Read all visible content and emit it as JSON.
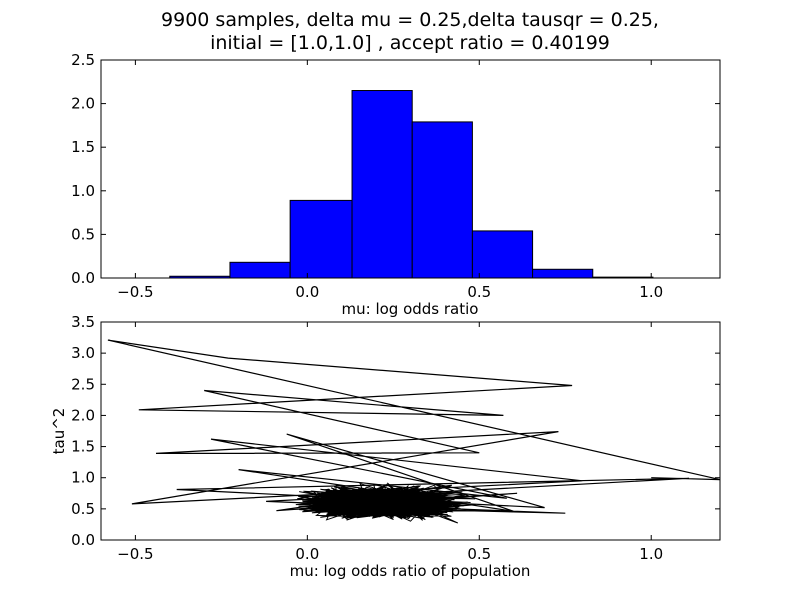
{
  "title_line1": "9900 samples, delta mu = 0.25,delta tausqr = 0.25,",
  "title_line2": "initial = [1.0,1.0] , accept ratio = 0.40199",
  "colors": {
    "bar_fill": "#0000ff",
    "edge": "#000000",
    "line": "#000000",
    "background": "#ffffff"
  },
  "chart_data": [
    {
      "type": "bar",
      "subtype": "histogram",
      "xlabel": "mu: log odds ratio",
      "ylabel": "",
      "xlim": [
        -0.6,
        1.2
      ],
      "ylim": [
        0,
        2.5
      ],
      "xticks": [
        -0.5,
        0.0,
        0.5,
        1.0
      ],
      "xtick_labels": [
        "−0.5",
        "0.0",
        "0.5",
        "1.0"
      ],
      "yticks": [
        0.0,
        0.5,
        1.0,
        1.5,
        2.0,
        2.5
      ],
      "ytick_labels": [
        "0.0",
        "0.5",
        "1.0",
        "1.5",
        "2.0",
        "2.5"
      ],
      "bins": [
        {
          "x0": -0.4,
          "x1": -0.225,
          "value": 0.02
        },
        {
          "x0": -0.225,
          "x1": -0.05,
          "value": 0.18
        },
        {
          "x0": -0.05,
          "x1": 0.13,
          "value": 0.89
        },
        {
          "x0": 0.13,
          "x1": 0.305,
          "value": 2.15
        },
        {
          "x0": 0.305,
          "x1": 0.48,
          "value": 1.79
        },
        {
          "x0": 0.48,
          "x1": 0.655,
          "value": 0.54
        },
        {
          "x0": 0.655,
          "x1": 0.83,
          "value": 0.1
        },
        {
          "x0": 0.83,
          "x1": 1.005,
          "value": 0.01
        }
      ],
      "grid": false
    },
    {
      "type": "line",
      "subtype": "trace",
      "xlabel": "mu: log odds ratio of population",
      "ylabel": "tau^2",
      "xlim": [
        -0.6,
        1.2
      ],
      "ylim": [
        0,
        3.5
      ],
      "xticks": [
        -0.5,
        0.0,
        0.5,
        1.0
      ],
      "xtick_labels": [
        "−0.5",
        "0.0",
        "0.5",
        "1.0"
      ],
      "yticks": [
        0.0,
        0.5,
        1.0,
        1.5,
        2.0,
        2.5,
        3.0,
        3.5
      ],
      "ytick_labels": [
        "0.0",
        "0.5",
        "1.0",
        "1.5",
        "2.0",
        "2.5",
        "3.0",
        "3.5"
      ],
      "x": [
        1.0,
        1.2,
        -0.58,
        -0.23,
        0.77,
        -0.49,
        0.57,
        -0.3,
        0.5,
        -0.44,
        0.73,
        -0.51,
        0.8,
        -0.28,
        0.58,
        -0.2,
        0.6,
        -0.06,
        0.69,
        -0.38,
        1.11,
        -0.12,
        0.75,
        -0.02,
        0.61,
        -0.09,
        0.42,
        0.1,
        0.25
      ],
      "y": [
        1.0,
        0.97,
        3.21,
        2.92,
        2.48,
        2.09,
        2.0,
        2.4,
        1.4,
        1.39,
        1.74,
        0.58,
        0.95,
        1.62,
        0.67,
        1.13,
        0.46,
        1.7,
        0.52,
        0.81,
        0.99,
        0.62,
        0.43,
        0.54,
        0.75,
        0.47,
        0.88,
        0.35,
        0.6
      ],
      "dense_cloud_center": {
        "mu": 0.22,
        "tau2": 0.6
      },
      "note_samples": 9900,
      "grid": false
    }
  ]
}
